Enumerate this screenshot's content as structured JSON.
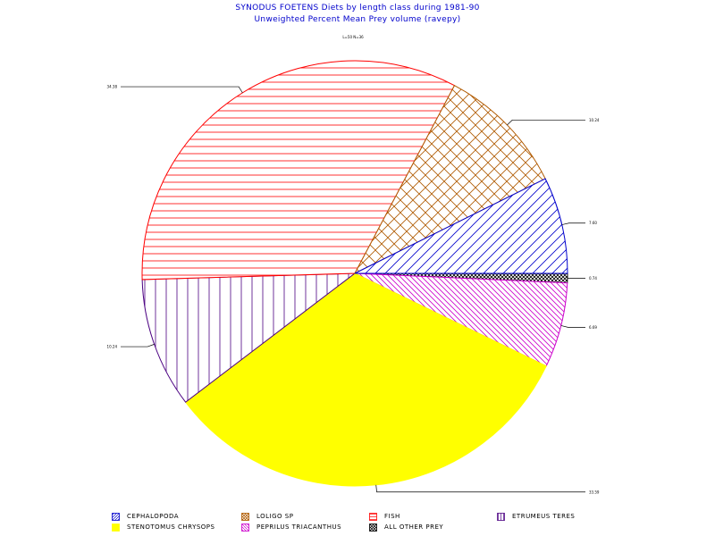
{
  "title": "SYNODUS FOETENS Diets by length class during 1981-90",
  "subtitle": "Unweighted Percent Mean Prey volume (ravepy)",
  "chart_data": {
    "type": "pie",
    "panel_label": "L=50 N=36",
    "start_angle_deg": 0,
    "direction": "clockwise-from-right",
    "slices": [
      {
        "name": "ALL OTHER PREY",
        "value": 0.74,
        "label": "0.74",
        "color": "#000000",
        "pattern": "crosshatch-fine",
        "fill": "#ffffff"
      },
      {
        "name": "PEPRILUS TRIACANTHUS",
        "value": 6.69,
        "label": "6.69",
        "color": "#cc00cc",
        "pattern": "diag-down",
        "fill": "#ffffff"
      },
      {
        "name": "STENOTOMUS CHRYSOPS",
        "value": 33.59,
        "label": "33.59",
        "color": "#ffff00",
        "pattern": "solid",
        "fill": "#ffff00"
      },
      {
        "name": "ETRUMEUS TERES",
        "value": 10.24,
        "label": "10.24",
        "color": "#4b0082",
        "pattern": "vertical",
        "fill": "#ffffff"
      },
      {
        "name": "FISH",
        "value": 34.38,
        "label": "34.38",
        "color": "#ff0000",
        "pattern": "horizontal",
        "fill": "#ffffff"
      },
      {
        "name": "LOLIGO SP",
        "value": 10.24,
        "label": "10.24",
        "color": "#b05a00",
        "pattern": "crosshatch",
        "fill": "#ffffff"
      },
      {
        "name": "CEPHALOPODA",
        "value": 7.6,
        "label": "7.60",
        "color": "#0000cc",
        "pattern": "diag-up",
        "fill": "#ffffff"
      }
    ]
  },
  "legend": [
    {
      "label": "CEPHALOPODA",
      "color": "#0000cc",
      "pattern": "diag-up"
    },
    {
      "label": "LOLIGO SP",
      "color": "#b05a00",
      "pattern": "crosshatch"
    },
    {
      "label": "FISH",
      "color": "#ff0000",
      "pattern": "horizontal"
    },
    {
      "label": "ETRUMEUS TERES",
      "color": "#4b0082",
      "pattern": "vertical"
    },
    {
      "label": "STENOTOMUS CHRYSOPS",
      "color": "#ffff00",
      "pattern": "solid"
    },
    {
      "label": "PEPRILUS TRIACANTHUS",
      "color": "#cc00cc",
      "pattern": "diag-down"
    },
    {
      "label": "ALL OTHER PREY",
      "color": "#000000",
      "pattern": "crosshatch-fine"
    }
  ]
}
